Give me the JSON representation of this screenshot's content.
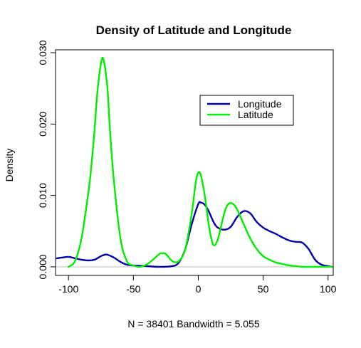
{
  "chart_data": {
    "type": "line",
    "title": "Density of Latitude and Longitude",
    "xlabel": "N = 38401   Bandwidth = 5.055",
    "ylabel": "Density",
    "xlim": [
      -110,
      104
    ],
    "ylim": [
      -0.0012,
      0.0304
    ],
    "x_ticks": [
      -100,
      -50,
      0,
      50,
      100
    ],
    "y_ticks": [
      0.0,
      0.01,
      0.02,
      0.03
    ],
    "y_tick_labels": [
      "0.000",
      "0.010",
      "0.020",
      "0.030"
    ],
    "grid": false,
    "legend_position": "top-right",
    "baseline": 0,
    "baseline_color": "#bebebe",
    "series": [
      {
        "name": "Longitude",
        "color": "#0000aa",
        "x": [
          -109,
          -105,
          -100,
          -95,
          -90,
          -85,
          -80,
          -75,
          -72,
          -70,
          -65,
          -60,
          -55,
          -50,
          -40,
          -30,
          -20,
          -15,
          -10,
          -5,
          0,
          2,
          5,
          8,
          12,
          15,
          20,
          25,
          30,
          35,
          40,
          45,
          50,
          55,
          60,
          65,
          70,
          75,
          80,
          85,
          90,
          95,
          100,
          103
        ],
        "y": [
          0.0012,
          0.0013,
          0.0014,
          0.0012,
          0.001,
          0.0009,
          0.001,
          0.0015,
          0.0017,
          0.0017,
          0.0013,
          0.0007,
          0.0003,
          0.0002,
          0.0001,
          0.0,
          0.0001,
          0.0006,
          0.0025,
          0.006,
          0.0088,
          0.009,
          0.0087,
          0.0078,
          0.0062,
          0.0055,
          0.0052,
          0.0056,
          0.007,
          0.0078,
          0.0075,
          0.0063,
          0.0055,
          0.005,
          0.0046,
          0.0041,
          0.0037,
          0.0035,
          0.0034,
          0.0025,
          0.001,
          0.0003,
          0.0001,
          0.0
        ]
      },
      {
        "name": "Latitude",
        "color": "#00ee00",
        "x": [
          -100,
          -95,
          -90,
          -85,
          -83,
          -80,
          -78,
          -75,
          -73,
          -70,
          -68,
          -65,
          -60,
          -55,
          -50,
          -45,
          -40,
          -35,
          -30,
          -28,
          -25,
          -20,
          -15,
          -10,
          -5,
          -2,
          0,
          2,
          5,
          8,
          10,
          12,
          15,
          18,
          20,
          22,
          24,
          26,
          28,
          30,
          35,
          40,
          45,
          50,
          55,
          60,
          65,
          70,
          75,
          80,
          85,
          90,
          95,
          100,
          103
        ],
        "y": [
          0.0,
          0.0008,
          0.004,
          0.01,
          0.013,
          0.019,
          0.024,
          0.0285,
          0.029,
          0.025,
          0.019,
          0.012,
          0.004,
          0.0008,
          0.0002,
          0.0,
          0.0003,
          0.001,
          0.0018,
          0.0019,
          0.0018,
          0.0008,
          0.0008,
          0.0025,
          0.0075,
          0.0118,
          0.0132,
          0.0128,
          0.01,
          0.006,
          0.004,
          0.003,
          0.0038,
          0.006,
          0.0075,
          0.0085,
          0.0089,
          0.0089,
          0.0086,
          0.008,
          0.006,
          0.004,
          0.0025,
          0.0015,
          0.001,
          0.0006,
          0.0004,
          0.0002,
          0.0001,
          0.0,
          0.0,
          0.0,
          0.0,
          0.0,
          0.0
        ]
      }
    ]
  }
}
